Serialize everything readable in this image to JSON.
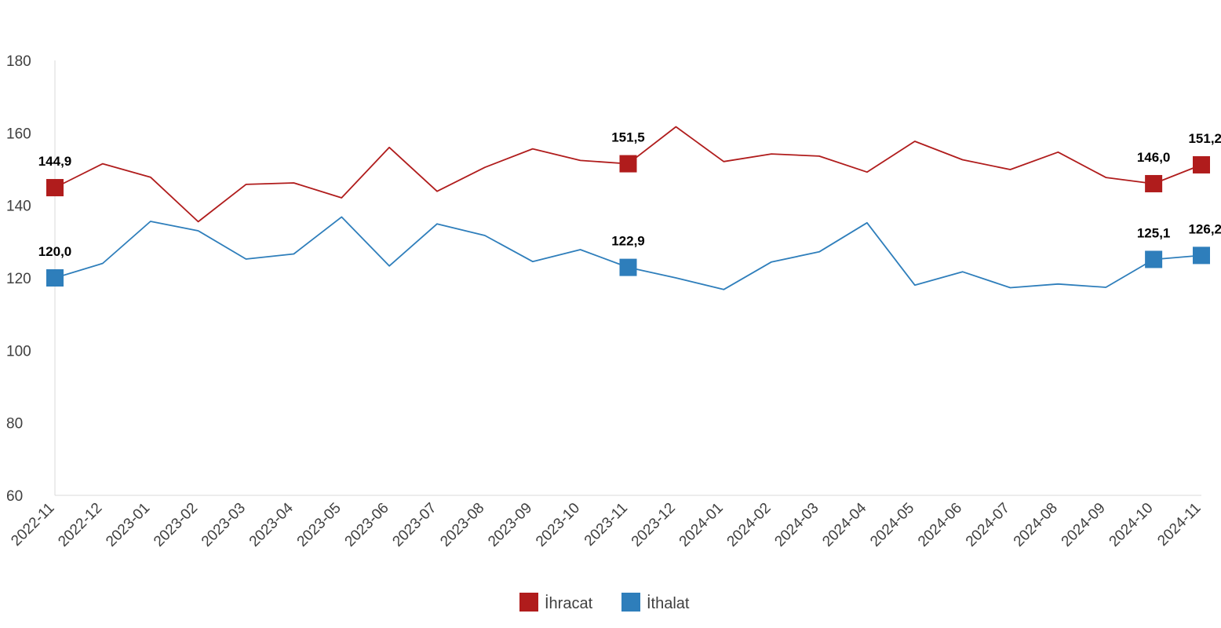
{
  "chart_data": {
    "type": "line",
    "title": "",
    "xlabel": "",
    "ylabel": "",
    "ylim": [
      60,
      180
    ],
    "yticks": [
      60,
      80,
      100,
      120,
      140,
      160,
      180
    ],
    "grid": false,
    "legend_position": "bottom-center",
    "categories": [
      "2022-11",
      "2022-12",
      "2023-01",
      "2023-02",
      "2023-03",
      "2023-04",
      "2023-05",
      "2023-06",
      "2023-07",
      "2023-08",
      "2023-09",
      "2023-10",
      "2023-11",
      "2023-12",
      "2024-01",
      "2024-02",
      "2024-03",
      "2024-04",
      "2024-05",
      "2024-06",
      "2024-07",
      "2024-08",
      "2024-09",
      "2024-10",
      "2024-11"
    ],
    "series": [
      {
        "name": "İhracat",
        "color": "#B01C1C",
        "values": [
          144.9,
          151.5,
          147.8,
          135.5,
          145.8,
          146.2,
          142.1,
          156.0,
          143.9,
          150.5,
          155.6,
          152.4,
          151.5,
          161.7,
          152.1,
          154.2,
          153.6,
          149.2,
          157.7,
          152.6,
          149.9,
          154.7,
          147.7,
          146.0,
          151.2
        ],
        "labeled": [
          0,
          12,
          23,
          24
        ],
        "labels": [
          "144,9",
          "151,5",
          "146,0",
          "151,2"
        ]
      },
      {
        "name": "İthalat",
        "color": "#2E7EBB",
        "values": [
          120.0,
          124.0,
          135.6,
          133.0,
          125.2,
          126.6,
          136.8,
          123.3,
          134.9,
          131.7,
          124.5,
          127.8,
          122.9,
          120.0,
          116.8,
          124.4,
          127.2,
          135.2,
          118.0,
          121.7,
          117.3,
          118.3,
          117.4,
          125.1,
          126.2
        ],
        "labeled": [
          0,
          12,
          23,
          24
        ],
        "labels": [
          "120,0",
          "122,9",
          "125,1",
          "126,2"
        ]
      }
    ]
  }
}
